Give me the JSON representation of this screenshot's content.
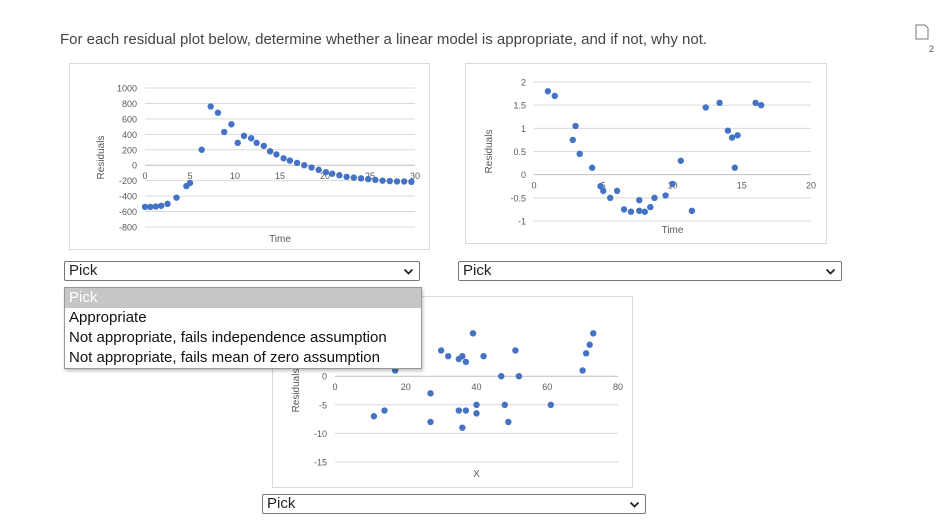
{
  "question": "For each residual plot below, determine whether a linear model is appropriate, and if not, why not.",
  "corner_badge": "2",
  "colors": {
    "point": "#4472C4",
    "grid": "#d9d9d9",
    "tick_text": "#595959"
  },
  "chart_data": [
    {
      "type": "scatter",
      "xlabel": "Time",
      "ylabel": "Residuals",
      "xlim": [
        0,
        30
      ],
      "ylim": [
        -800,
        1000
      ],
      "x_ticks": [
        0,
        5,
        10,
        15,
        20,
        25,
        30
      ],
      "y_ticks": [
        1000,
        800,
        600,
        400,
        200,
        0,
        -200,
        -400,
        -600,
        -800
      ],
      "grid": true,
      "points": [
        [
          0,
          -540
        ],
        [
          0.6,
          -540
        ],
        [
          1.2,
          -535
        ],
        [
          1.8,
          -525
        ],
        [
          2.5,
          -500
        ],
        [
          3.5,
          -420
        ],
        [
          4.6,
          -270
        ],
        [
          5,
          -230
        ],
        [
          6.3,
          200
        ],
        [
          7.3,
          760
        ],
        [
          8.1,
          680
        ],
        [
          8.8,
          430
        ],
        [
          9.6,
          530
        ],
        [
          10.3,
          290
        ],
        [
          11,
          380
        ],
        [
          11.8,
          350
        ],
        [
          12.4,
          290
        ],
        [
          13.2,
          250
        ],
        [
          13.9,
          180
        ],
        [
          14.6,
          140
        ],
        [
          15.4,
          90
        ],
        [
          16.1,
          60
        ],
        [
          16.9,
          30
        ],
        [
          17.7,
          0
        ],
        [
          18.5,
          -30
        ],
        [
          19.3,
          -60
        ],
        [
          20.1,
          -90
        ],
        [
          20.8,
          -110
        ],
        [
          21.6,
          -130
        ],
        [
          22.4,
          -150
        ],
        [
          23.2,
          -160
        ],
        [
          24,
          -170
        ],
        [
          24.8,
          -180
        ],
        [
          25.6,
          -190
        ],
        [
          26.4,
          -200
        ],
        [
          27.2,
          -205
        ],
        [
          28,
          -210
        ],
        [
          28.8,
          -210
        ],
        [
          29.6,
          -215
        ]
      ]
    },
    {
      "type": "scatter",
      "xlabel": "Time",
      "ylabel": "Residuals",
      "xlim": [
        0,
        20
      ],
      "ylim": [
        -1,
        2
      ],
      "x_ticks": [
        0,
        5,
        10,
        15,
        20
      ],
      "y_ticks": [
        2,
        1.5,
        1,
        0.5,
        0,
        -0.5,
        -1
      ],
      "grid": true,
      "points": [
        [
          1,
          1.8
        ],
        [
          1.5,
          1.7
        ],
        [
          3,
          1.05
        ],
        [
          2.8,
          0.75
        ],
        [
          3.3,
          0.45
        ],
        [
          4.2,
          0.15
        ],
        [
          4.8,
          -0.25
        ],
        [
          5,
          -0.35
        ],
        [
          5.5,
          -0.5
        ],
        [
          6,
          -0.35
        ],
        [
          6.5,
          -0.75
        ],
        [
          7,
          -0.8
        ],
        [
          7.6,
          -0.55
        ],
        [
          7.6,
          -0.78
        ],
        [
          8,
          -0.8
        ],
        [
          8.4,
          -0.7
        ],
        [
          8.7,
          -0.5
        ],
        [
          9.5,
          -0.45
        ],
        [
          10,
          -0.2
        ],
        [
          10.6,
          0.3
        ],
        [
          11.4,
          -0.78
        ],
        [
          12.4,
          1.45
        ],
        [
          13.4,
          1.55
        ],
        [
          14,
          0.95
        ],
        [
          14.3,
          0.8
        ],
        [
          14.7,
          0.85
        ],
        [
          14.5,
          0.15
        ],
        [
          16,
          1.55
        ],
        [
          16.4,
          1.5
        ]
      ]
    },
    {
      "type": "scatter",
      "xlabel": "X",
      "ylabel": "Residuals",
      "xlim": [
        0,
        80
      ],
      "ylim": [
        -15,
        10
      ],
      "x_ticks": [
        0,
        20,
        40,
        60,
        80
      ],
      "y_ticks": [
        -15,
        -10,
        -5,
        0
      ],
      "grid": true,
      "points": [
        [
          11,
          -7
        ],
        [
          14,
          -6
        ],
        [
          17,
          1
        ],
        [
          27,
          -3
        ],
        [
          30,
          4.5
        ],
        [
          32,
          3.5
        ],
        [
          35,
          3
        ],
        [
          36,
          3.5
        ],
        [
          37,
          2.5
        ],
        [
          39,
          7.5
        ],
        [
          27,
          -8
        ],
        [
          35,
          -6
        ],
        [
          37,
          -6
        ],
        [
          36,
          -9
        ],
        [
          40,
          -5
        ],
        [
          40,
          -6.5
        ],
        [
          42,
          3.5
        ],
        [
          47,
          0
        ],
        [
          48,
          -5
        ],
        [
          49,
          -8
        ],
        [
          51,
          4.5
        ],
        [
          52,
          0
        ],
        [
          61,
          -5
        ],
        [
          70,
          1
        ],
        [
          71,
          4
        ],
        [
          72,
          5.5
        ],
        [
          73,
          7.5
        ]
      ]
    }
  ],
  "selects": [
    {
      "value": "Pick"
    },
    {
      "value": "Pick"
    },
    {
      "value": "Pick"
    }
  ],
  "dropdown": {
    "options": [
      "Pick",
      "Appropriate",
      "Not appropriate, fails independence assumption",
      "Not appropriate, fails mean of zero assumption"
    ]
  }
}
